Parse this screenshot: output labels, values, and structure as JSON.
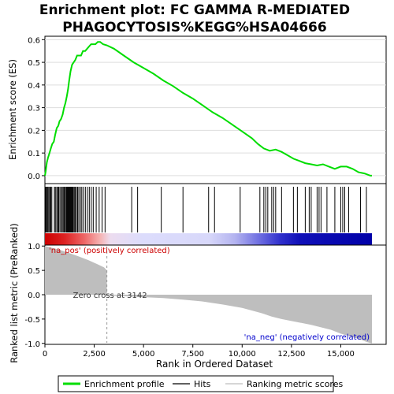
{
  "chart_data": {
    "type": "line",
    "title_line1": "Enrichment plot: FC GAMMA R-MEDIATED",
    "title_line2": "PHAGOCYTOSIS%KEGG%HSA04666",
    "xlabel": "Rank in Ordered Dataset",
    "xlim": [
      0,
      17300
    ],
    "x_ticks": [
      0,
      2500,
      5000,
      7500,
      10000,
      12500,
      15000
    ],
    "x_tick_labels": [
      "0",
      "2,500",
      "5,000",
      "7,500",
      "10,000",
      "12,500",
      "15,000"
    ],
    "es_panel": {
      "ylabel": "Enrichment score (ES)",
      "ylim": [
        -0.035,
        0.615
      ],
      "y_ticks": [
        0.0,
        0.1,
        0.2,
        0.3,
        0.4,
        0.5,
        0.6
      ],
      "y_tick_labels": [
        "0.0",
        "0.1",
        "0.2",
        "0.3",
        "0.4",
        "0.5",
        "0.6"
      ],
      "line_color": "#00dd00",
      "points": [
        [
          0,
          0
        ],
        [
          40,
          0.02
        ],
        [
          100,
          0.06
        ],
        [
          160,
          0.08
        ],
        [
          230,
          0.1
        ],
        [
          300,
          0.12
        ],
        [
          370,
          0.14
        ],
        [
          450,
          0.15
        ],
        [
          520,
          0.18
        ],
        [
          600,
          0.21
        ],
        [
          680,
          0.22
        ],
        [
          740,
          0.24
        ],
        [
          820,
          0.25
        ],
        [
          900,
          0.27
        ],
        [
          970,
          0.3
        ],
        [
          1040,
          0.32
        ],
        [
          1110,
          0.35
        ],
        [
          1170,
          0.38
        ],
        [
          1230,
          0.42
        ],
        [
          1300,
          0.46
        ],
        [
          1380,
          0.49
        ],
        [
          1460,
          0.5
        ],
        [
          1540,
          0.51
        ],
        [
          1630,
          0.53
        ],
        [
          1730,
          0.53
        ],
        [
          1830,
          0.53
        ],
        [
          1930,
          0.55
        ],
        [
          2040,
          0.55
        ],
        [
          2140,
          0.56
        ],
        [
          2240,
          0.57
        ],
        [
          2340,
          0.58
        ],
        [
          2440,
          0.58
        ],
        [
          2560,
          0.58
        ],
        [
          2680,
          0.59
        ],
        [
          2800,
          0.59
        ],
        [
          2950,
          0.58
        ],
        [
          3142,
          0.575
        ],
        [
          3500,
          0.56
        ],
        [
          4000,
          0.53
        ],
        [
          4500,
          0.5
        ],
        [
          5000,
          0.475
        ],
        [
          5500,
          0.45
        ],
        [
          6000,
          0.42
        ],
        [
          6500,
          0.395
        ],
        [
          7000,
          0.365
        ],
        [
          7500,
          0.34
        ],
        [
          8000,
          0.31
        ],
        [
          8500,
          0.28
        ],
        [
          9000,
          0.255
        ],
        [
          9500,
          0.225
        ],
        [
          10000,
          0.195
        ],
        [
          10500,
          0.165
        ],
        [
          10800,
          0.14
        ],
        [
          11100,
          0.12
        ],
        [
          11400,
          0.11
        ],
        [
          11700,
          0.115
        ],
        [
          12000,
          0.105
        ],
        [
          12300,
          0.09
        ],
        [
          12600,
          0.075
        ],
        [
          12900,
          0.065
        ],
        [
          13200,
          0.055
        ],
        [
          13500,
          0.05
        ],
        [
          13800,
          0.045
        ],
        [
          14100,
          0.05
        ],
        [
          14400,
          0.04
        ],
        [
          14700,
          0.03
        ],
        [
          15000,
          0.04
        ],
        [
          15300,
          0.04
        ],
        [
          15600,
          0.03
        ],
        [
          15900,
          0.015
        ],
        [
          16200,
          0.01
        ],
        [
          16500,
          0.0
        ],
        [
          16580,
          0.0
        ]
      ]
    },
    "hits": [
      30,
      70,
      110,
      150,
      200,
      250,
      300,
      350,
      480,
      530,
      600,
      650,
      700,
      760,
      820,
      880,
      930,
      980,
      1030,
      1080,
      1120,
      1160,
      1200,
      1240,
      1280,
      1320,
      1360,
      1400,
      1440,
      1490,
      1540,
      1600,
      1660,
      1720,
      1800,
      1870,
      1950,
      2050,
      2150,
      2250,
      2350,
      2450,
      2600,
      2750,
      2900,
      3050,
      4400,
      4700,
      5900,
      7000,
      8300,
      8600,
      9900,
      10900,
      11100,
      11200,
      11300,
      11500,
      11600,
      11700,
      12000,
      12600,
      12800,
      13200,
      13400,
      13500,
      13800,
      13900,
      14000,
      14300,
      14700,
      15000,
      15100,
      15200,
      15400,
      16000,
      16300
    ],
    "heatmap_stops": [
      {
        "frac": 0.0,
        "color": "#cc0000"
      },
      {
        "frac": 0.06,
        "color": "#dd2222"
      },
      {
        "frac": 0.12,
        "color": "#ee6666"
      },
      {
        "frac": 0.17,
        "color": "#f5b4b4"
      },
      {
        "frac": 0.2,
        "color": "#ecdcef"
      },
      {
        "frac": 0.3,
        "color": "#dcdcfc"
      },
      {
        "frac": 0.5,
        "color": "#d8d8fa"
      },
      {
        "frac": 0.58,
        "color": "#b4b4f0"
      },
      {
        "frac": 0.66,
        "color": "#6a6ae0"
      },
      {
        "frac": 0.72,
        "color": "#3030cc"
      },
      {
        "frac": 0.78,
        "color": "#1010b8"
      },
      {
        "frac": 1.0,
        "color": "#0000a8"
      }
    ],
    "metric_panel": {
      "ylabel": "Ranked list metric (PreRanked)",
      "ylim": [
        -1.02,
        1.02
      ],
      "y_ticks": [
        1.0,
        0.5,
        0.0,
        -0.5,
        -1.0
      ],
      "y_tick_labels": [
        "1.0",
        "0.5",
        "0.0",
        "-0.5",
        "-1.0"
      ],
      "points": [
        [
          0,
          1.0
        ],
        [
          300,
          0.97
        ],
        [
          700,
          0.93
        ],
        [
          1200,
          0.86
        ],
        [
          1700,
          0.79
        ],
        [
          2200,
          0.71
        ],
        [
          2700,
          0.62
        ],
        [
          3000,
          0.56
        ],
        [
          3142,
          0.5
        ],
        [
          3143,
          -0.01
        ],
        [
          4000,
          -0.03
        ],
        [
          5000,
          -0.05
        ],
        [
          6000,
          -0.07
        ],
        [
          7000,
          -0.1
        ],
        [
          8000,
          -0.14
        ],
        [
          9000,
          -0.2
        ],
        [
          10000,
          -0.27
        ],
        [
          11000,
          -0.38
        ],
        [
          11500,
          -0.45
        ],
        [
          12000,
          -0.5
        ],
        [
          13000,
          -0.58
        ],
        [
          13500,
          -0.62
        ],
        [
          14000,
          -0.67
        ],
        [
          14500,
          -0.72
        ],
        [
          15000,
          -0.8
        ],
        [
          15500,
          -0.86
        ],
        [
          16000,
          -0.92
        ],
        [
          16300,
          -0.97
        ],
        [
          16580,
          -1.0
        ]
      ],
      "fill_color": "#bebebe",
      "zero_cross_label": "Zero cross at 3142",
      "zero_cross_x": 3142,
      "pos_label": "'na_pos' (positively correlated)",
      "neg_label": "'na_neg' (negatively correlated)",
      "pos_color": "#cc0000",
      "neg_color": "#0000cc"
    },
    "legend": [
      {
        "label": "Enrichment profile",
        "color": "#00dd00",
        "kind": "line-green"
      },
      {
        "label": "Hits",
        "color": "#000000",
        "kind": "line-black"
      },
      {
        "label": "Ranking metric scores",
        "color": "#bebebe",
        "kind": "line-gray"
      }
    ],
    "legend_placement": "bottom"
  }
}
